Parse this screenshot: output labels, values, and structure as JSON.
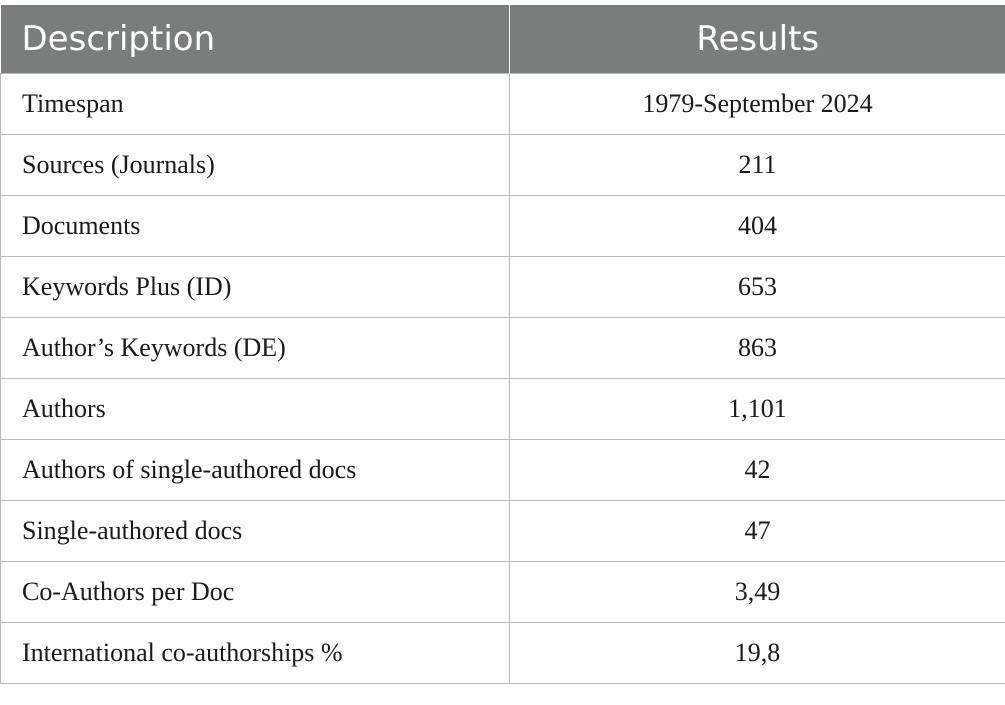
{
  "table": {
    "headers": {
      "description": "Description",
      "results": "Results"
    },
    "rows": [
      {
        "description": "Timespan",
        "result": "1979-September 2024"
      },
      {
        "description": "Sources (Journals)",
        "result": "211"
      },
      {
        "description": "Documents",
        "result": "404"
      },
      {
        "description": "Keywords Plus (ID)",
        "result": "653"
      },
      {
        "description": "Author’s Keywords (DE)",
        "result": "863"
      },
      {
        "description": "Authors",
        "result": "1,101"
      },
      {
        "description": "Authors of single-authored docs",
        "result": "42"
      },
      {
        "description": "Single-authored docs",
        "result": "47"
      },
      {
        "description": "Co-Authors per Doc",
        "result": "3,49"
      },
      {
        "description": "International co-authorships %",
        "result": "19,8"
      }
    ]
  },
  "colors": {
    "header_background": "#7b7d7c",
    "header_text": "#ffffff",
    "border": "#b9b9b9",
    "body_text": "#1a1a1a"
  }
}
